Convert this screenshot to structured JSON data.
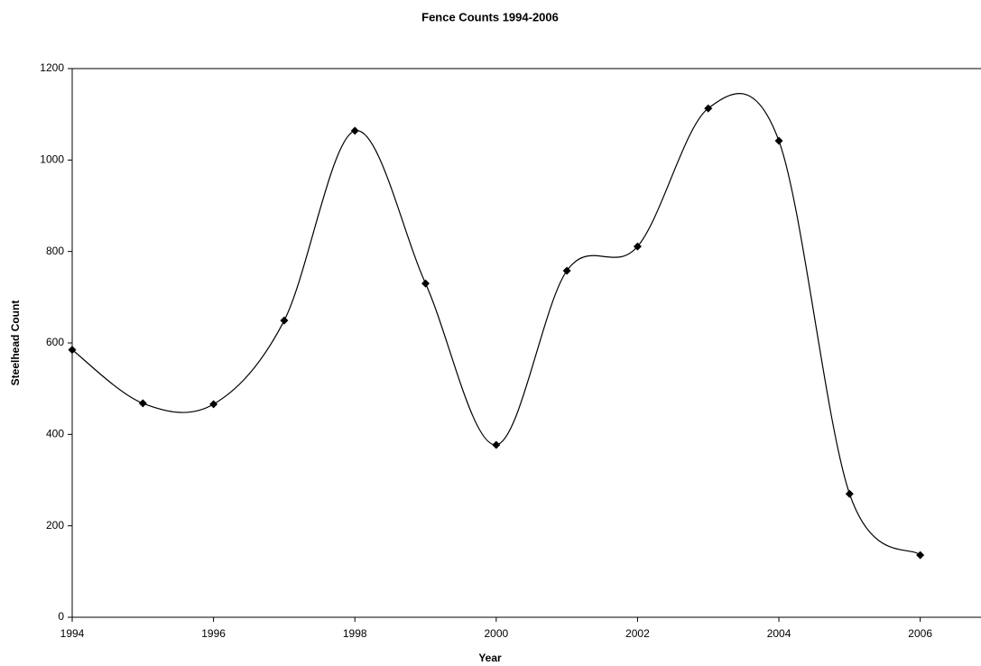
{
  "chart_data": {
    "type": "line",
    "title": "Fence Counts 1994-2006",
    "xlabel": "Year",
    "ylabel": "Steelhead Count",
    "x": [
      1994,
      1995,
      1996,
      1997,
      1998,
      1999,
      2000,
      2001,
      2002,
      2003,
      2004,
      2005,
      2006
    ],
    "series": [
      {
        "name": "Steelhead Count",
        "color": "#000000",
        "values": [
          585,
          468,
          466,
          649,
          1064,
          730,
          377,
          758,
          811,
          1113,
          1042,
          270,
          136
        ]
      }
    ],
    "xlim": [
      1994,
      2006.86
    ],
    "xticks": [
      1994,
      1996,
      1998,
      2000,
      2002,
      2004,
      2006
    ],
    "ylim": [
      0,
      1200
    ],
    "yticks": [
      0,
      200,
      400,
      600,
      800,
      1000,
      1200
    ],
    "smooth": true,
    "marker": "diamond",
    "grid": false
  }
}
